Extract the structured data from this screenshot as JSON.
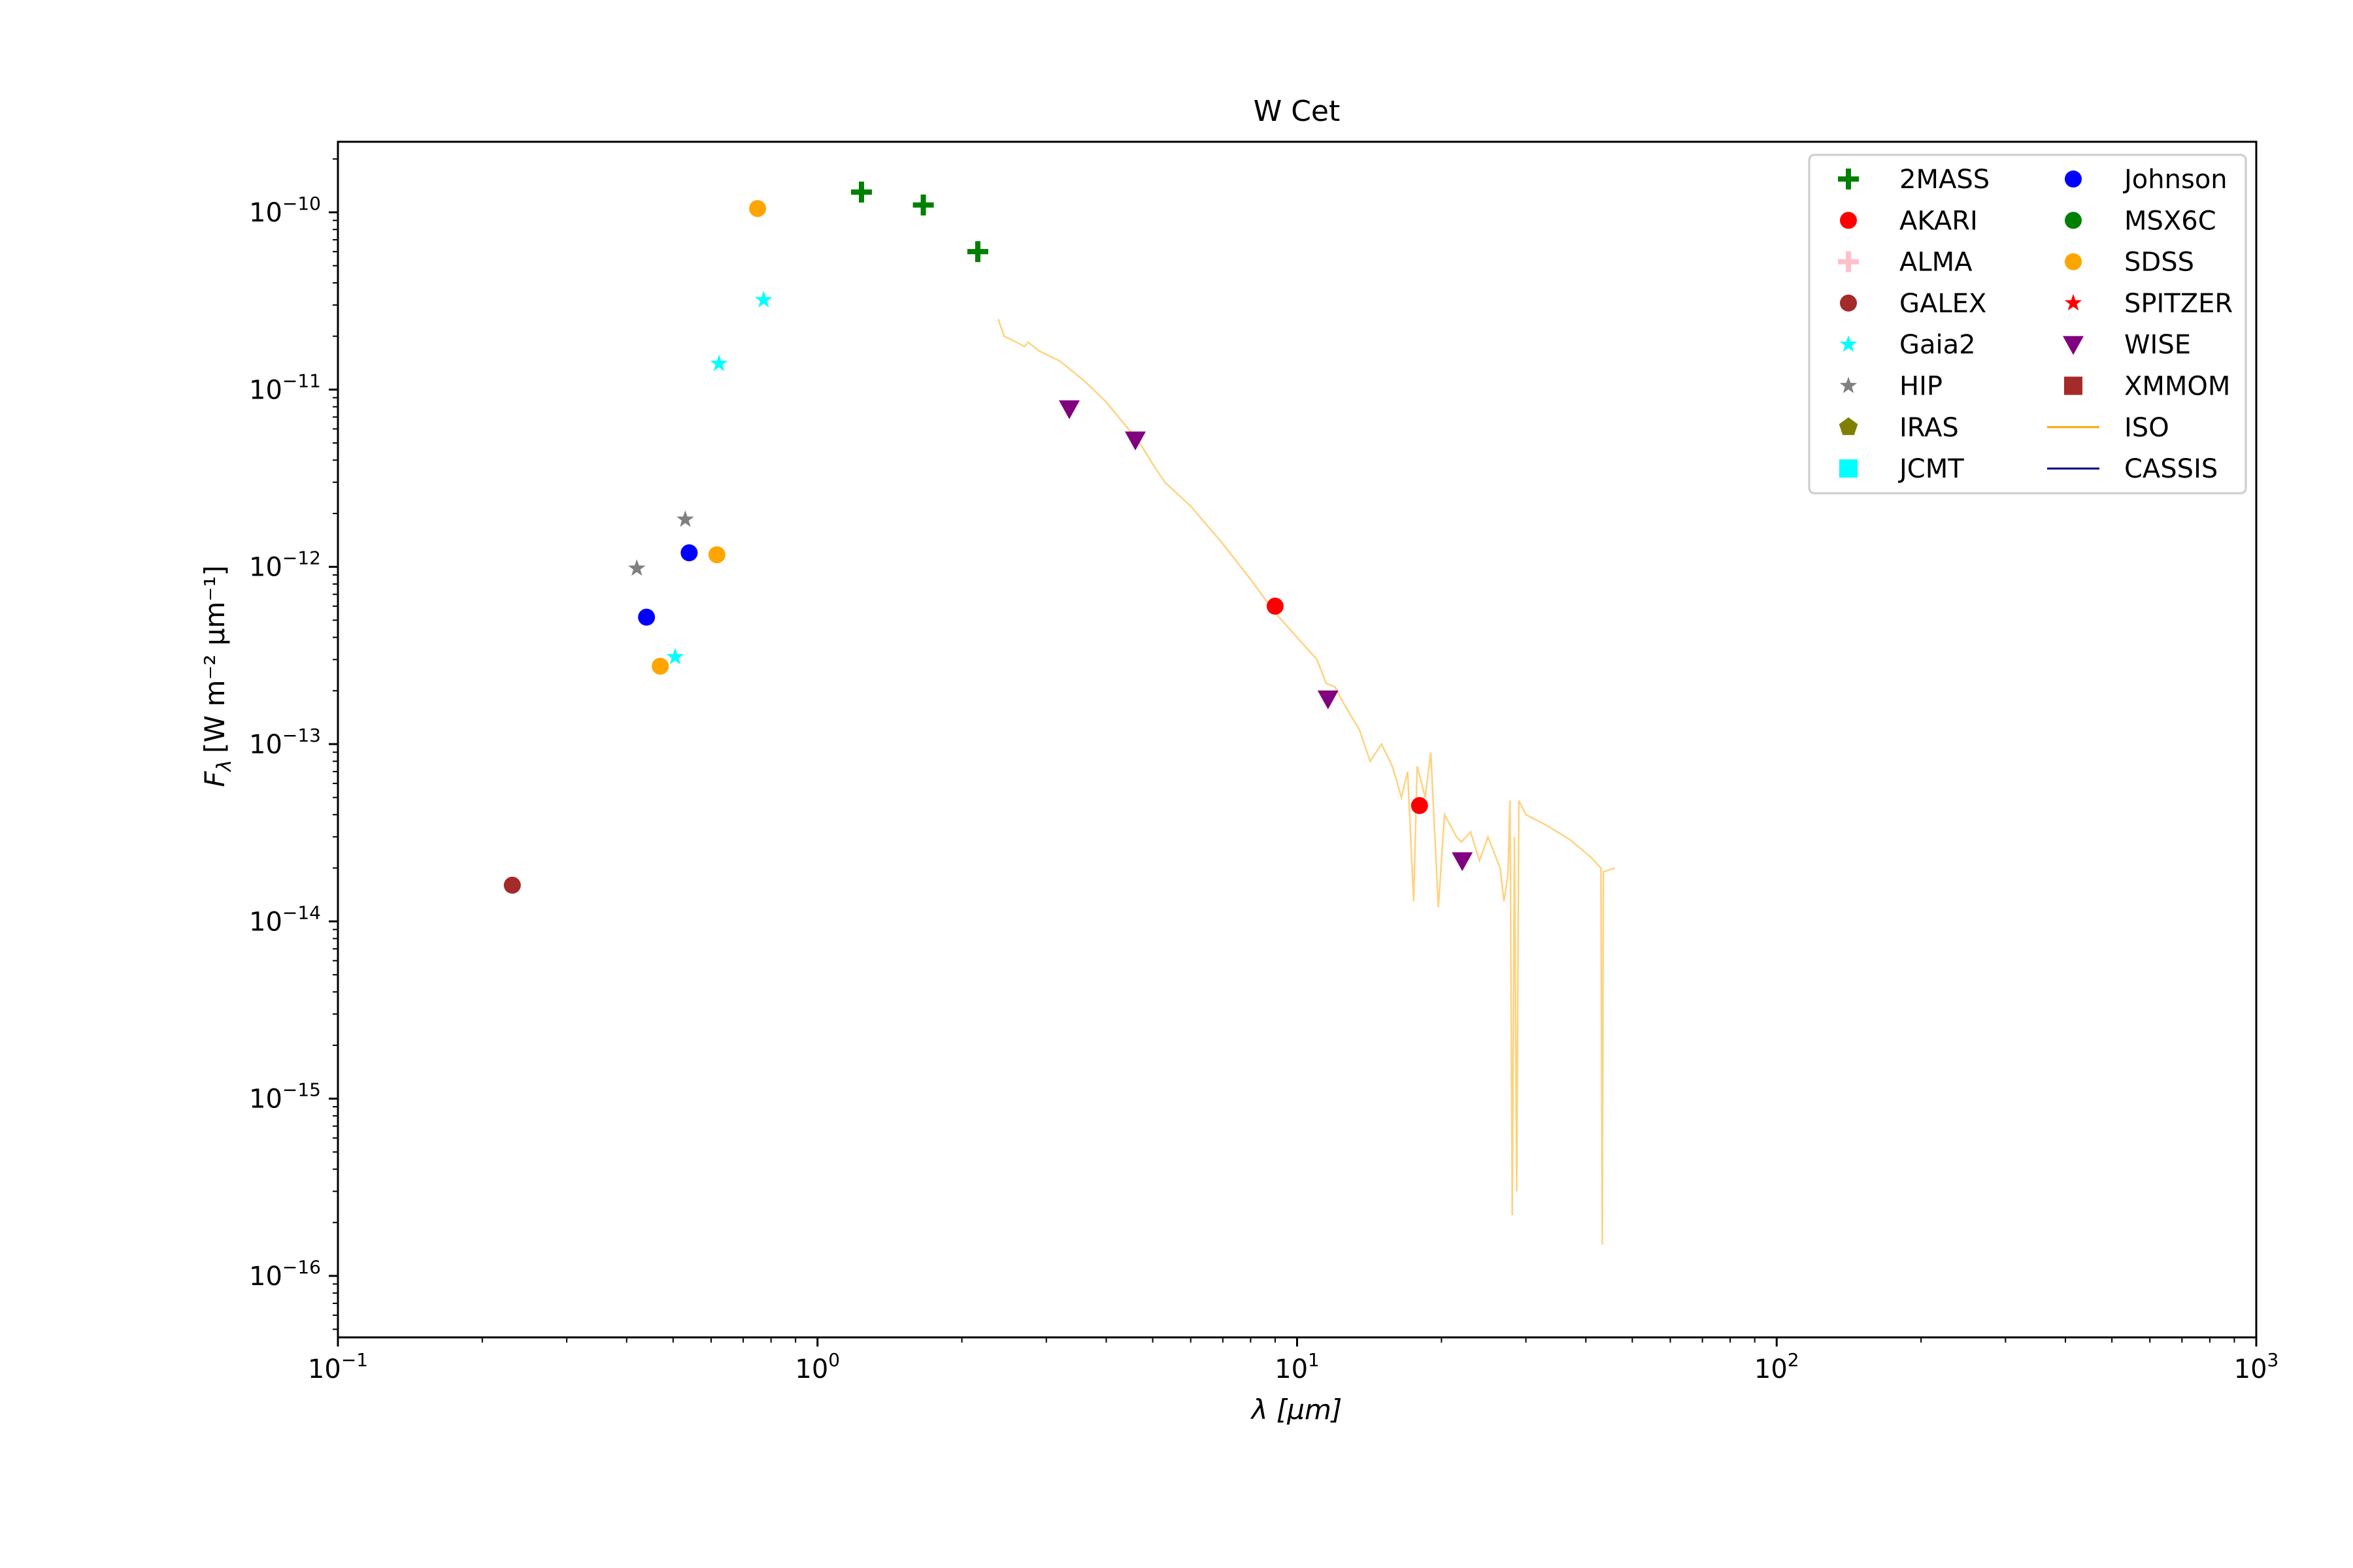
{
  "chart_data": {
    "type": "scatter",
    "title": "W Cet",
    "xlabel_main": "λ",
    "xlabel_unit": "[μm]",
    "ylabel_main": "F",
    "ylabel_sub": "λ",
    "ylabel_unit": "[W m⁻² μm⁻¹]",
    "xscale": "log",
    "yscale": "log",
    "xlim": [
      0.1,
      1000
    ],
    "ylim": [
      4.5e-17,
      2.5e-10
    ],
    "grid": false,
    "legend_position": "top-right",
    "x_ticks": [
      {
        "value": 0.1,
        "base": "10",
        "exp": "−1"
      },
      {
        "value": 1,
        "base": "10",
        "exp": "0"
      },
      {
        "value": 10,
        "base": "10",
        "exp": "1"
      },
      {
        "value": 100,
        "base": "10",
        "exp": "2"
      },
      {
        "value": 1000,
        "base": "10",
        "exp": "3"
      }
    ],
    "y_ticks": [
      {
        "value": 1e-16,
        "base": "10",
        "exp": "−16"
      },
      {
        "value": 1e-15,
        "base": "10",
        "exp": "−15"
      },
      {
        "value": 1e-14,
        "base": "10",
        "exp": "−14"
      },
      {
        "value": 1e-13,
        "base": "10",
        "exp": "−13"
      },
      {
        "value": 1e-12,
        "base": "10",
        "exp": "−12"
      },
      {
        "value": 1e-11,
        "base": "10",
        "exp": "−11"
      },
      {
        "value": 1e-10,
        "base": "10",
        "exp": "−10"
      }
    ],
    "series": [
      {
        "name": "2MASS",
        "marker": "plus",
        "color": "#008000",
        "points": [
          [
            1.235,
            1.3e-10
          ],
          [
            1.662,
            1.1e-10
          ],
          [
            2.159,
            6e-11
          ]
        ]
      },
      {
        "name": "AKARI",
        "marker": "circle",
        "color": "#ff0000",
        "points": [
          [
            9.0,
            6e-13
          ],
          [
            18.0,
            4.5e-14
          ]
        ]
      },
      {
        "name": "ALMA",
        "marker": "plus",
        "color": "#ffc0cb",
        "points": []
      },
      {
        "name": "GALEX",
        "marker": "circle",
        "color": "#a52a2a",
        "points": [
          [
            0.231,
            1.6e-14
          ]
        ]
      },
      {
        "name": "Gaia2",
        "marker": "star",
        "color": "#00ffff",
        "points": [
          [
            0.505,
            3.1e-13
          ],
          [
            0.623,
            1.4e-11
          ],
          [
            0.772,
            3.2e-11
          ]
        ]
      },
      {
        "name": "HIP",
        "marker": "star",
        "color": "#808080",
        "points": [
          [
            0.42,
            9.8e-13
          ],
          [
            0.53,
            1.85e-12
          ]
        ]
      },
      {
        "name": "IRAS",
        "marker": "pentagon",
        "color": "#808000",
        "points": []
      },
      {
        "name": "JCMT",
        "marker": "square",
        "color": "#00ffff",
        "points": []
      },
      {
        "name": "Johnson",
        "marker": "circle",
        "color": "#0000ff",
        "points": [
          [
            0.44,
            5.2e-13
          ],
          [
            0.54,
            1.2e-12
          ]
        ]
      },
      {
        "name": "MSX6C",
        "marker": "circle",
        "color": "#008000",
        "points": []
      },
      {
        "name": "SDSS",
        "marker": "circle",
        "color": "#ffa500",
        "points": [
          [
            0.47,
            2.75e-13
          ],
          [
            0.617,
            1.17e-12
          ],
          [
            0.75,
            1.05e-10
          ]
        ]
      },
      {
        "name": "SPITZER",
        "marker": "star",
        "color": "#ff0000",
        "points": []
      },
      {
        "name": "WISE",
        "marker": "triangle-down",
        "color": "#800080",
        "points": [
          [
            3.35,
            7.8e-12
          ],
          [
            4.6,
            5.2e-12
          ],
          [
            11.6,
            1.8e-13
          ],
          [
            22.1,
            2.2e-14
          ]
        ]
      },
      {
        "name": "XMMOM",
        "marker": "square",
        "color": "#a52a2a",
        "points": []
      },
      {
        "name": "ISO",
        "marker": "line",
        "color": "#ffa500",
        "opacity": 0.5,
        "points": [
          [
            2.38,
            2.5e-11
          ],
          [
            2.45,
            2e-11
          ],
          [
            2.6,
            1.85e-11
          ],
          [
            2.7,
            1.75e-11
          ],
          [
            2.75,
            1.85e-11
          ],
          [
            2.9,
            1.65e-11
          ],
          [
            3.2,
            1.45e-11
          ],
          [
            3.6,
            1.12e-11
          ],
          [
            4.0,
            8.5e-12
          ],
          [
            4.4,
            6.2e-12
          ],
          [
            4.7,
            5e-12
          ],
          [
            5.0,
            3.8e-12
          ],
          [
            5.3,
            3e-12
          ],
          [
            6.0,
            2.2e-12
          ],
          [
            7.0,
            1.35e-12
          ],
          [
            8.0,
            8.5e-13
          ],
          [
            9.0,
            5.5e-13
          ],
          [
            10.0,
            4e-13
          ],
          [
            11.0,
            3e-13
          ],
          [
            11.5,
            2.2e-13
          ],
          [
            12.0,
            2.1e-13
          ],
          [
            12.5,
            1.7e-13
          ],
          [
            13.5,
            1.2e-13
          ],
          [
            14.2,
            8e-14
          ],
          [
            15.0,
            1e-13
          ],
          [
            15.8,
            7.5e-14
          ],
          [
            16.5,
            5e-14
          ],
          [
            17.0,
            7e-14
          ],
          [
            17.5,
            1.3e-14
          ],
          [
            17.8,
            7.5e-14
          ],
          [
            18.5,
            5e-14
          ],
          [
            19.0,
            9e-14
          ],
          [
            19.7,
            1.2e-14
          ],
          [
            20.3,
            4e-14
          ],
          [
            21.5,
            3e-14
          ],
          [
            22.0,
            2.8e-14
          ],
          [
            23.0,
            3.2e-14
          ],
          [
            24.0,
            2.2e-14
          ],
          [
            25.0,
            3e-14
          ],
          [
            26.5,
            2e-14
          ],
          [
            27.0,
            1.3e-14
          ],
          [
            27.5,
            1.8e-14
          ],
          [
            27.8,
            4.8e-14
          ],
          [
            28.1,
            2.2e-16
          ],
          [
            28.4,
            3e-14
          ],
          [
            28.7,
            3e-16
          ],
          [
            29.0,
            4.8e-14
          ],
          [
            30.0,
            4e-14
          ],
          [
            33.0,
            3.5e-14
          ],
          [
            37.0,
            2.9e-14
          ],
          [
            41.0,
            2.3e-14
          ],
          [
            43.0,
            2e-14
          ],
          [
            43.3,
            1.5e-16
          ],
          [
            43.5,
            1.9e-14
          ],
          [
            46.0,
            2e-14
          ]
        ]
      },
      {
        "name": "CASSIS",
        "marker": "line",
        "color": "#00008b",
        "points": []
      }
    ]
  }
}
